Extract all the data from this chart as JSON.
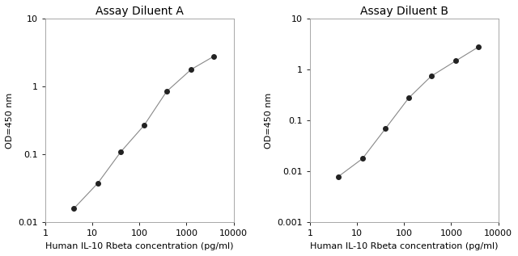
{
  "left": {
    "title": "Assay Diluent A",
    "x": [
      4,
      13,
      40,
      125,
      375,
      1250,
      3750
    ],
    "y": [
      0.016,
      0.038,
      0.11,
      0.27,
      0.85,
      1.8,
      2.8
    ],
    "xlim": [
      1,
      10000
    ],
    "ylim": [
      0.01,
      10
    ],
    "xlabel": "Human IL-10 Rbeta concentration (pg/ml)",
    "ylabel": "OD=450 nm",
    "xticks": [
      1,
      10,
      100,
      1000,
      10000
    ],
    "yticks": [
      0.01,
      0.1,
      1,
      10
    ]
  },
  "right": {
    "title": "Assay Diluent B",
    "x": [
      4,
      13,
      40,
      125,
      375,
      1250,
      3750
    ],
    "y": [
      0.008,
      0.018,
      0.07,
      0.28,
      0.75,
      1.5,
      2.8
    ],
    "xlim": [
      1,
      10000
    ],
    "ylim": [
      0.001,
      10
    ],
    "xlabel": "Human IL-10 Rbeta concentration (pg/ml)",
    "ylabel": "OD=450 nm",
    "xticks": [
      1,
      10,
      100,
      1000,
      10000
    ],
    "yticks": [
      0.001,
      0.01,
      0.1,
      1,
      10
    ]
  },
  "line_color": "#888888",
  "marker": "o",
  "marker_color": "#222222",
  "marker_size": 4,
  "bg_color": "#ffffff",
  "title_fontsize": 10,
  "label_fontsize": 8,
  "tick_fontsize": 8
}
